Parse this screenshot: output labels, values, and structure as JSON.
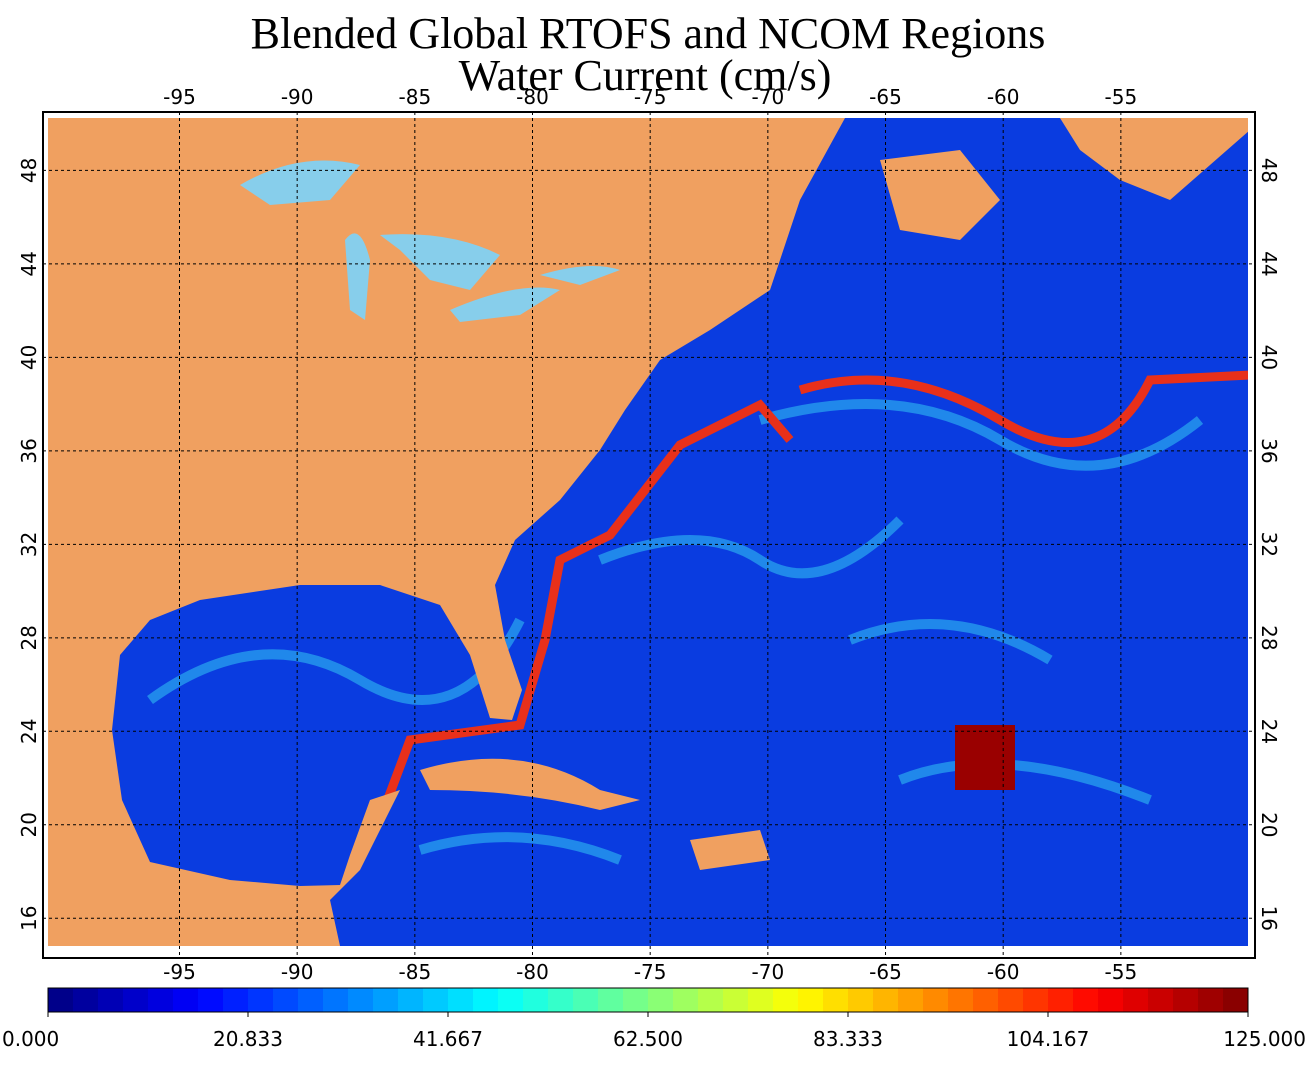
{
  "title": [
    "Blended Global RTOFS and NCOM Regions",
    "Water Current (cm/s)"
  ],
  "map": {
    "lonlim": [
      -100.8,
      -49.3
    ],
    "latlim": [
      14.3,
      50.5
    ],
    "lon_ticks": [
      -95,
      -90,
      -85,
      -80,
      -75,
      -70,
      -65,
      -60,
      -55
    ],
    "lat_ticks": [
      16,
      20,
      24,
      28,
      32,
      36,
      40,
      44,
      48
    ]
  },
  "colorbar": {
    "range": [
      0,
      125
    ],
    "segments": 48,
    "ticks": [
      {
        "value": 0,
        "label": "0.000"
      },
      {
        "value": 20.833,
        "label": "20.833"
      },
      {
        "value": 41.667,
        "label": "41.667"
      },
      {
        "value": 62.5,
        "label": "62.500"
      },
      {
        "value": 83.333,
        "label": "83.333"
      },
      {
        "value": 104.167,
        "label": "104.167"
      },
      {
        "value": 125,
        "label": "125.000"
      }
    ]
  }
}
